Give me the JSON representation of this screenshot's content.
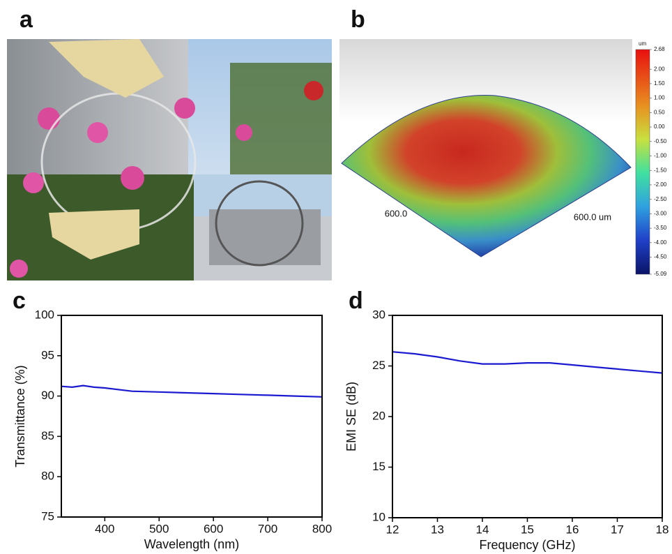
{
  "panels": {
    "a": "a",
    "b": "b",
    "c": "c",
    "d": "d"
  },
  "surface": {
    "x_label": "600.0",
    "y_label": "600.0 um",
    "colorbar": {
      "unit": "um",
      "lim": [
        -5.09,
        2.68
      ],
      "ticks": [
        2.68,
        {
          "value": 2,
          "label": "2.00"
        },
        {
          "value": 1.5,
          "label": "1.50"
        },
        {
          "value": 1,
          "label": "1.00"
        },
        {
          "value": 0.5,
          "label": "0.50"
        },
        {
          "value": 0,
          "label": "0.00"
        },
        {
          "value": -0.5,
          "label": "-0.50"
        },
        {
          "value": -1,
          "label": "-1.00"
        },
        {
          "value": -1.5,
          "label": "-1.50"
        },
        {
          "value": -2,
          "label": "-2.00"
        },
        {
          "value": -2.5,
          "label": "-2.50"
        },
        {
          "value": -3,
          "label": "-3.00"
        },
        {
          "value": -3.5,
          "label": "-3.50"
        },
        {
          "value": -4,
          "label": "-4.00"
        },
        {
          "value": -4.5,
          "label": "-4.50"
        },
        -5.09
      ]
    }
  },
  "chart_data": [
    {
      "type": "line",
      "xlabel": "Wavelength (nm)",
      "ylabel": "Transmittance (%)",
      "x": [
        320,
        340,
        360,
        380,
        400,
        450,
        500,
        550,
        600,
        650,
        700,
        750,
        800
      ],
      "values": [
        91.2,
        91.1,
        91.3,
        91.1,
        91.0,
        90.6,
        90.5,
        90.4,
        90.3,
        90.2,
        90.1,
        90.0,
        89.9
      ],
      "color": "#1a1ad0",
      "xlim": [
        320,
        800
      ],
      "ylim": [
        75,
        100
      ],
      "xticks": [
        400,
        500,
        600,
        700,
        800
      ],
      "yticks": [
        75,
        80,
        85,
        90,
        95,
        100
      ]
    },
    {
      "type": "line",
      "xlabel": "Frequency (GHz)",
      "ylabel": "EMI SE (dB)",
      "x": [
        12,
        12.5,
        13,
        13.5,
        14,
        14.5,
        15,
        15.5,
        16,
        16.5,
        17,
        17.5,
        18
      ],
      "values": [
        26.4,
        26.2,
        25.9,
        25.5,
        25.2,
        25.2,
        25.3,
        25.3,
        25.1,
        24.9,
        24.7,
        24.5,
        24.3
      ],
      "color": "#1a1ad0",
      "xlim": [
        12,
        18
      ],
      "ylim": [
        10,
        30
      ],
      "xticks": [
        12,
        13,
        14,
        15,
        16,
        17,
        18
      ],
      "yticks": [
        10,
        15,
        20,
        25,
        30
      ]
    }
  ]
}
